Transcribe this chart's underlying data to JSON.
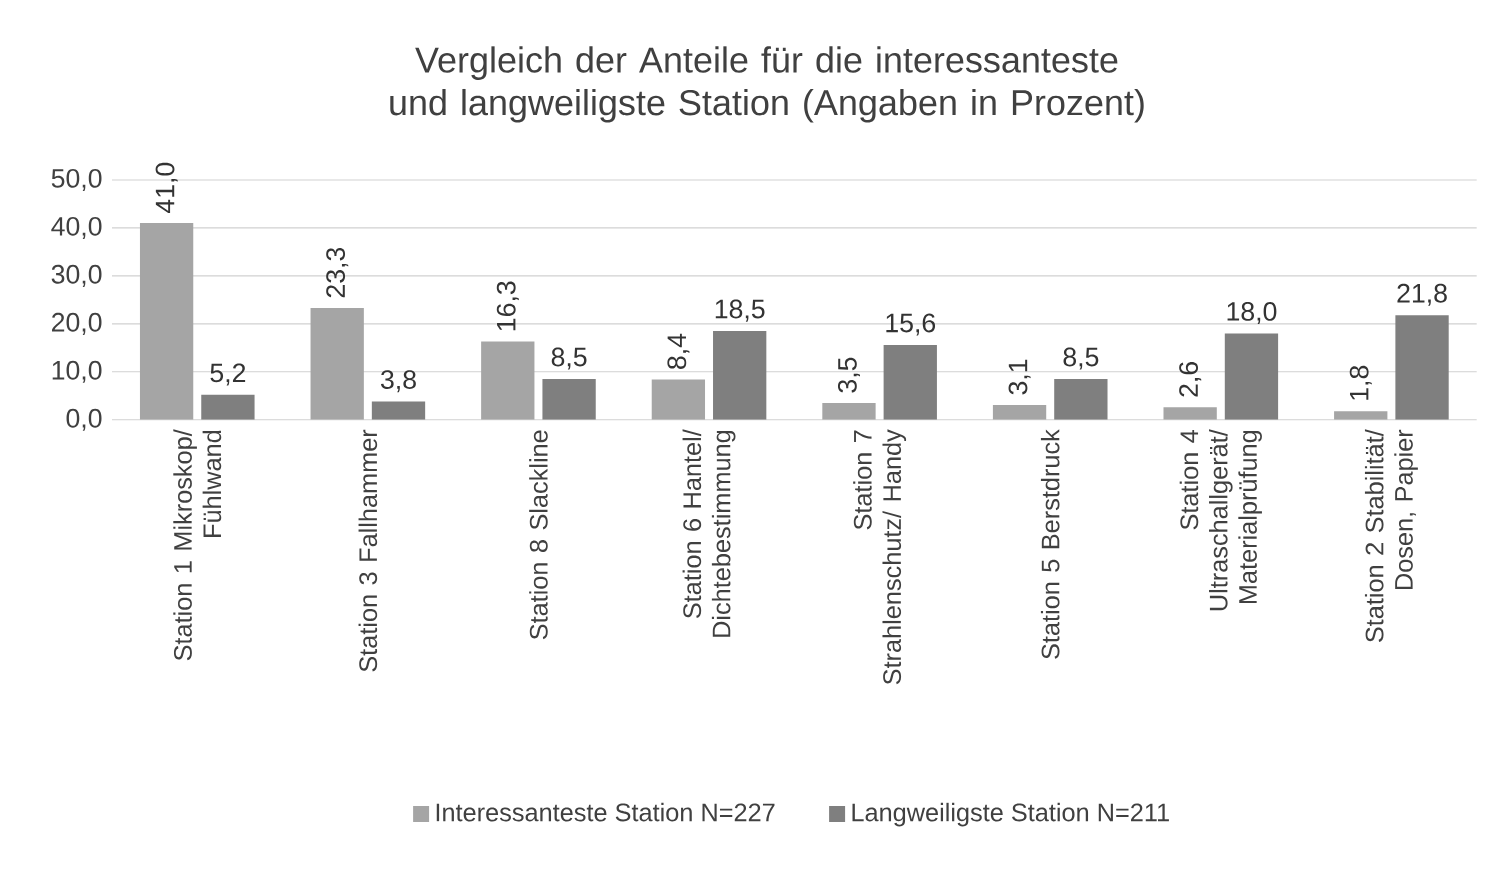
{
  "chart_data": {
    "type": "bar",
    "title": "Vergleich der Anteile für die interessanteste und langweiligste Station (Angaben in Prozent)",
    "categories": [
      "Station 1 Mikroskop/ Fühlwand",
      "Station 3 Fallhammer",
      "Station 8 Slackline",
      "Station 6 Hantel/ Dichtebestimmung",
      "Station 7 Strahlenschutz/ Handy",
      "Station 5 Berstdruck",
      "Station 4 Ultraschallgerät/ Materialprüfung",
      "Station 2 Stabilität/ Dosen, Papier"
    ],
    "series": [
      {
        "name": "Interessanteste Station N=227",
        "color": "#a5a5a5",
        "values": [
          41.0,
          23.3,
          16.3,
          8.4,
          3.5,
          3.1,
          2.6,
          1.8
        ],
        "value_labels": [
          "41,0",
          "23,3",
          "16,3",
          "8,4",
          "3,5",
          "3,1",
          "2,6",
          "1,8"
        ]
      },
      {
        "name": "Langweiligste Station N=211",
        "color": "#7f7f7f",
        "values": [
          5.2,
          3.8,
          8.5,
          18.5,
          15.6,
          8.5,
          18.0,
          21.8
        ],
        "value_labels": [
          "5,2",
          "3,8",
          "8,5",
          "18,5",
          "15,6",
          "8,5",
          "18,0",
          "21,8"
        ]
      }
    ],
    "ylim": [
      0,
      50
    ],
    "yticks": [
      {
        "value": 0,
        "label": "0,0"
      },
      {
        "value": 10,
        "label": "10,0"
      },
      {
        "value": 20,
        "label": "20,0"
      },
      {
        "value": 30,
        "label": "30,0"
      },
      {
        "value": 40,
        "label": "40,0"
      },
      {
        "value": 50,
        "label": "50,0"
      }
    ],
    "grid": "y",
    "legend": "bottom"
  }
}
